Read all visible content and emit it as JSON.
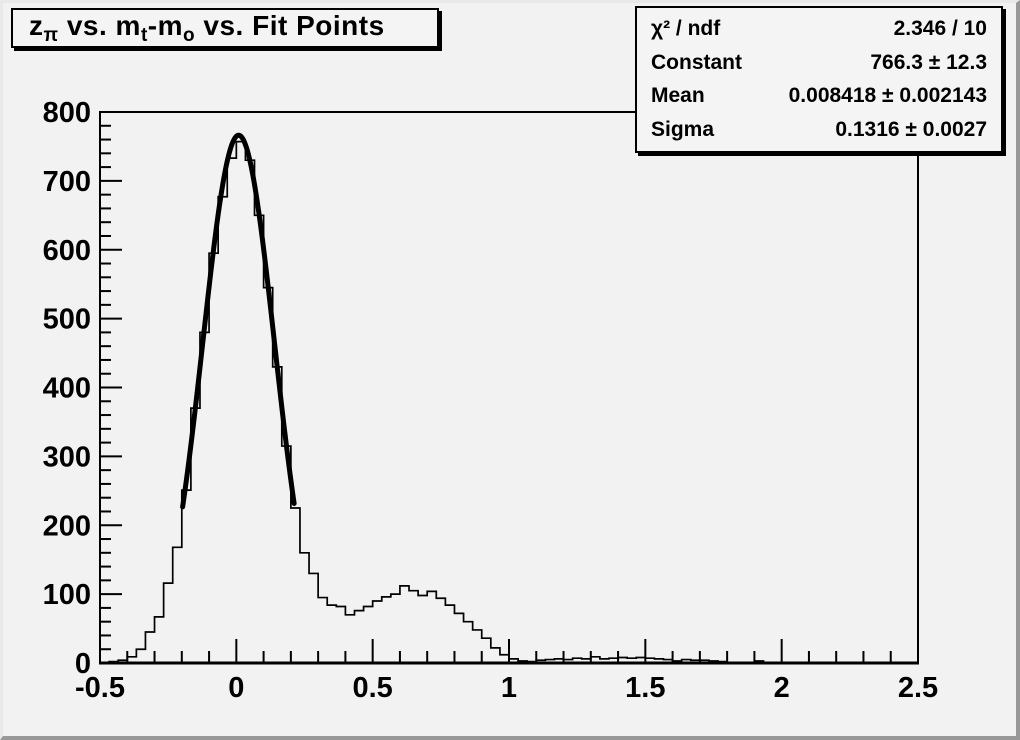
{
  "canvas": {
    "background_color": "#f2f2f2",
    "foreground_color": "#000000",
    "frame_fill_color": "#f2f2f2"
  },
  "title": {
    "text": "zπ vs. mt-mo vs. Fit Points",
    "segments": [
      {
        "t": "z"
      },
      {
        "sub": "π"
      },
      {
        "t": " vs. m"
      },
      {
        "sub": "t"
      },
      {
        "t": "-m"
      },
      {
        "sub": "o"
      },
      {
        "t": " vs. Fit Points"
      }
    ]
  },
  "stats": {
    "rows": [
      {
        "label": "χ² / ndf",
        "value": "2.346 / 10"
      },
      {
        "label": "Constant",
        "value": "766.3 ± 12.3"
      },
      {
        "label": "Mean",
        "value": "0.008418 ± 0.002143"
      },
      {
        "label": "Sigma",
        "value": "0.1316 ± 0.0027"
      }
    ]
  },
  "chart_data": {
    "type": "bar",
    "subtype": "step-histogram",
    "title": "zπ vs. mt-mo vs. Fit Points",
    "xlabel": "",
    "ylabel": "",
    "xlim": [
      -0.5,
      2.5
    ],
    "ylim": [
      0,
      800
    ],
    "grid": false,
    "legend": "stats-box-top-right",
    "bin_start": -0.5,
    "bin_width": 0.0333333,
    "n_bins": 90,
    "values": [
      1,
      2,
      4,
      9,
      20,
      45,
      67,
      116,
      168,
      251,
      370,
      480,
      595,
      677,
      733,
      757,
      730,
      650,
      545,
      430,
      315,
      225,
      160,
      130,
      95,
      84,
      82,
      70,
      76,
      82,
      90,
      96,
      100,
      112,
      105,
      98,
      104,
      94,
      84,
      72,
      60,
      48,
      36,
      22,
      12,
      6,
      3,
      2,
      4,
      5,
      6,
      5,
      7,
      6,
      9,
      6,
      7,
      8,
      7,
      8,
      7,
      6,
      5,
      3,
      5,
      4,
      4,
      3,
      2,
      1,
      1,
      0,
      3,
      1,
      0,
      0,
      0,
      0,
      0,
      0,
      0,
      0,
      0,
      0,
      0,
      0,
      0,
      0,
      0,
      0
    ],
    "x_ticks_major": [
      -0.5,
      0,
      0.5,
      1,
      1.5,
      2,
      2.5
    ],
    "x_tick_labels": [
      "-0.5",
      "0",
      "0.5",
      "1",
      "1.5",
      "2",
      "2.5"
    ],
    "x_minor_step": 0.1,
    "y_ticks_major": [
      0,
      100,
      200,
      300,
      400,
      500,
      600,
      700,
      800
    ],
    "y_tick_labels": [
      "0",
      "100",
      "200",
      "300",
      "400",
      "500",
      "600",
      "700",
      "800"
    ],
    "y_minor_step": 20,
    "fit_curve": {
      "function": "gaussian",
      "constant": 766.3,
      "mean": 0.008418,
      "sigma": 0.1316,
      "draw_range": [
        -0.197,
        0.212
      ],
      "line_width": 5,
      "color": "#000000"
    },
    "histogram_line_color": "#000000",
    "histogram_line_width": 1.7
  }
}
